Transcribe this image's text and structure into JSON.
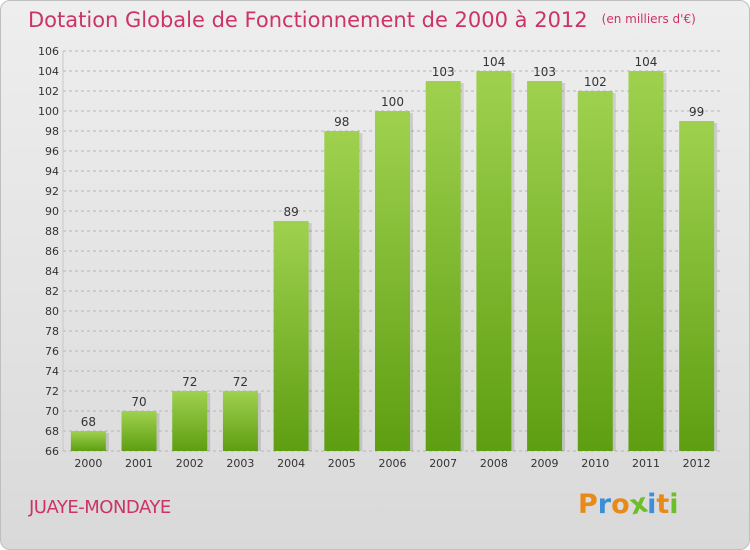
{
  "title": "Dotation Globale de Fonctionnement de 2000 à 2012",
  "unit": "(en milliers d'€)",
  "commune": "JUAYE-MONDAYE",
  "logo": {
    "letters": [
      "P",
      "r",
      "o",
      "x",
      "i",
      "t",
      "i"
    ],
    "colors": [
      "#e88a1a",
      "#3a8fd6",
      "#e88a1a",
      "#6dbf2a",
      "#3a8fd6",
      "#e88a1a",
      "#6dbf2a"
    ]
  },
  "colors": {
    "title": "#cc3366",
    "bar_top": "#9fd14f",
    "bar_bottom": "#5e9e12"
  },
  "chart_data": {
    "type": "bar",
    "title": "Dotation Globale de Fonctionnement de 2000 à 2012",
    "subtitle": "(en milliers d'€)",
    "categories": [
      "2000",
      "2001",
      "2002",
      "2003",
      "2004",
      "2005",
      "2006",
      "2007",
      "2008",
      "2009",
      "2010",
      "2011",
      "2012"
    ],
    "values": [
      68,
      70,
      72,
      72,
      89,
      98,
      100,
      103,
      104,
      103,
      102,
      104,
      99
    ],
    "ylim": [
      66,
      106
    ],
    "yticks": [
      66,
      68,
      70,
      72,
      74,
      76,
      78,
      80,
      82,
      84,
      86,
      88,
      90,
      92,
      94,
      96,
      98,
      100,
      102,
      104,
      106
    ],
    "grid": "horizontal-dashed",
    "legend": "none"
  }
}
